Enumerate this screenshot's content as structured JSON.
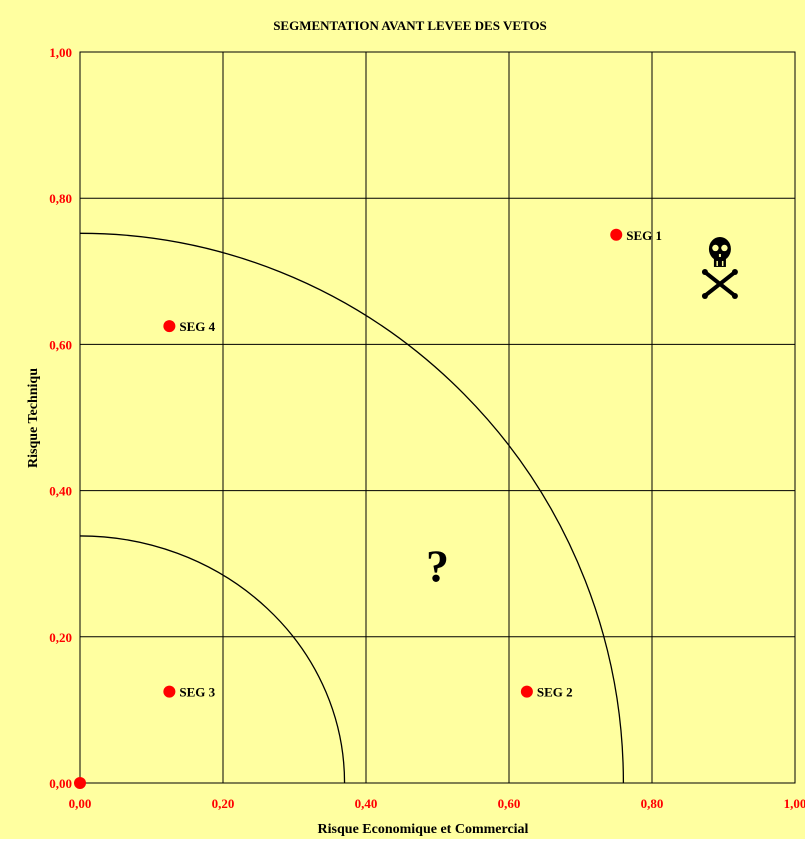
{
  "chart_data": {
    "type": "scatter",
    "title": "SEGMENTATION AVANT LEVEE DES VETOS",
    "xlabel": "Risque Economique et Commercial",
    "ylabel": "Risque Techniqu",
    "xlim": [
      0,
      1
    ],
    "ylim": [
      0,
      1
    ],
    "x_ticks": [
      "0,00",
      "0,20",
      "0,40",
      "0,60",
      "0,80",
      "1,00"
    ],
    "y_ticks": [
      "0,00",
      "0,20",
      "0,40",
      "0,60",
      "0,80",
      "1,00"
    ],
    "grid": true,
    "points": [
      {
        "label": "SEG 1",
        "x": 0.75,
        "y": 0.75
      },
      {
        "label": "SEG 2",
        "x": 0.625,
        "y": 0.125
      },
      {
        "label": "SEG 3",
        "x": 0.125,
        "y": 0.125
      },
      {
        "label": "SEG 4",
        "x": 0.125,
        "y": 0.625
      },
      {
        "label": "",
        "x": 0.0,
        "y": 0.0
      }
    ],
    "arcs": [
      {
        "radius_x": 0.37,
        "radius_y": 0.338
      },
      {
        "radius_x": 0.76,
        "radius_y": 0.752
      }
    ],
    "annotations": [
      {
        "text": "?",
        "x": 0.5,
        "y": 0.3
      },
      {
        "icon": "skull-crossbones-icon",
        "x": 0.895,
        "y": 0.695
      }
    ],
    "colors": {
      "background": "#FFFFA0",
      "point": "#FF0000",
      "tick_label": "#FF0000",
      "grid": "#000000",
      "arc": "#000000"
    }
  }
}
